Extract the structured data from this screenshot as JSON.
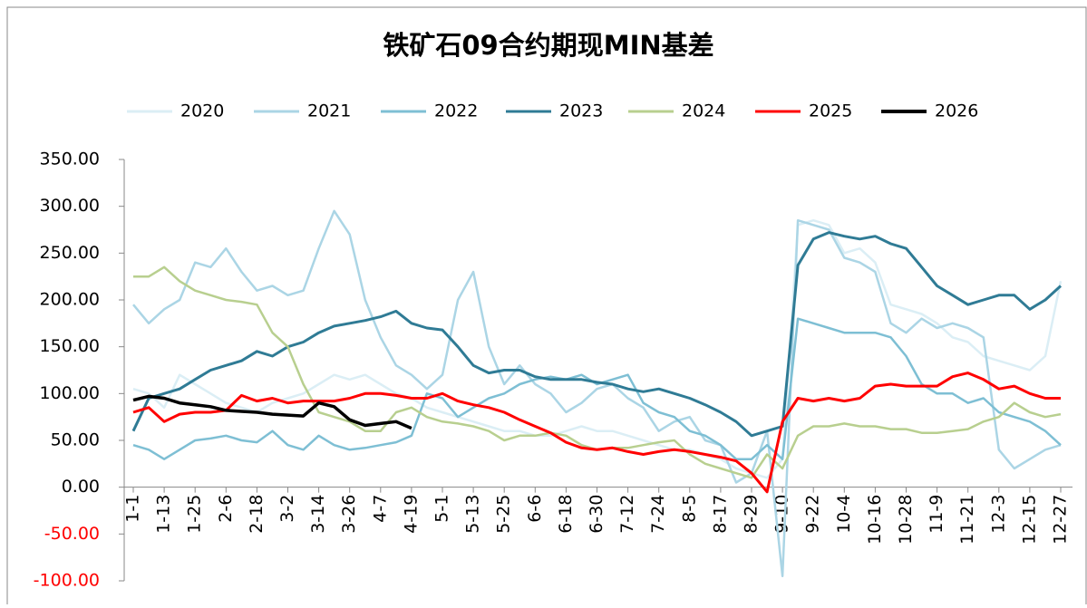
{
  "chart_data": {
    "type": "line",
    "title": "铁矿石09合约期现MIN基差",
    "categories": [
      "1-1",
      null,
      "1-13",
      null,
      "1-25",
      null,
      "2-6",
      null,
      "2-18",
      null,
      "3-2",
      null,
      "3-14",
      null,
      "3-26",
      null,
      "4-7",
      null,
      "4-19",
      null,
      "5-1",
      null,
      "5-13",
      null,
      "5-25",
      null,
      "6-6",
      null,
      "6-18",
      null,
      "6-30",
      null,
      "7-12",
      null,
      "7-24",
      null,
      "8-5",
      null,
      "8-17",
      null,
      "8-29",
      null,
      "9-10",
      null,
      "9-22",
      null,
      "10-4",
      null,
      "10-16",
      null,
      "10-28",
      null,
      "11-9",
      null,
      "11-21",
      null,
      "12-3",
      null,
      "12-15",
      null,
      "12-27"
    ],
    "series": [
      {
        "name": "2020",
        "color": "#dbeef5",
        "values": [
          105,
          100,
          85,
          120,
          110,
          100,
          90,
          85,
          80,
          90,
          95,
          100,
          110,
          120,
          115,
          120,
          110,
          100,
          95,
          85,
          80,
          75,
          70,
          65,
          60,
          60,
          55,
          55,
          60,
          65,
          60,
          60,
          55,
          50,
          45,
          40,
          40,
          35,
          30,
          20,
          15,
          10,
          30,
          280,
          285,
          280,
          250,
          255,
          240,
          195,
          190,
          185,
          175,
          160,
          155,
          140,
          135,
          130,
          125,
          140,
          220
        ]
      },
      {
        "name": "2021",
        "color": "#abd5e5",
        "values": [
          195,
          175,
          190,
          200,
          240,
          235,
          255,
          230,
          210,
          215,
          205,
          210,
          255,
          295,
          270,
          200,
          160,
          130,
          120,
          105,
          120,
          200,
          230,
          150,
          110,
          130,
          110,
          100,
          80,
          90,
          105,
          110,
          95,
          85,
          60,
          70,
          75,
          50,
          45,
          5,
          15,
          60,
          -95,
          285,
          280,
          275,
          245,
          240,
          230,
          175,
          165,
          180,
          170,
          175,
          170,
          160,
          40,
          20,
          30,
          40,
          45
        ]
      },
      {
        "name": "2022",
        "color": "#7ebfd4",
        "values": [
          45,
          40,
          30,
          40,
          50,
          52,
          55,
          50,
          48,
          60,
          45,
          40,
          55,
          45,
          40,
          42,
          45,
          48,
          55,
          100,
          95,
          75,
          85,
          95,
          100,
          110,
          115,
          118,
          115,
          120,
          110,
          115,
          120,
          90,
          80,
          75,
          60,
          55,
          45,
          30,
          30,
          45,
          30,
          180,
          175,
          170,
          165,
          165,
          165,
          160,
          140,
          110,
          100,
          100,
          90,
          95,
          80,
          75,
          70,
          60,
          45
        ]
      },
      {
        "name": "2023",
        "color": "#2f7b95",
        "values": [
          60,
          95,
          100,
          105,
          115,
          125,
          130,
          135,
          145,
          140,
          150,
          155,
          165,
          172,
          175,
          178,
          182,
          188,
          175,
          170,
          168,
          150,
          130,
          122,
          125,
          125,
          118,
          115,
          115,
          115,
          112,
          110,
          105,
          102,
          105,
          100,
          95,
          88,
          80,
          70,
          55,
          60,
          65,
          237,
          265,
          272,
          268,
          265,
          268,
          260,
          255,
          235,
          215,
          205,
          195,
          200,
          205,
          205,
          190,
          200,
          215
        ]
      },
      {
        "name": "2024",
        "color": "#b8cf8f",
        "values": [
          225,
          225,
          235,
          220,
          210,
          205,
          200,
          198,
          195,
          165,
          150,
          110,
          80,
          75,
          70,
          60,
          60,
          80,
          85,
          75,
          70,
          68,
          65,
          60,
          50,
          55,
          55,
          58,
          55,
          45,
          40,
          42,
          42,
          45,
          48,
          50,
          35,
          25,
          20,
          15,
          10,
          35,
          20,
          55,
          65,
          65,
          68,
          65,
          65,
          62,
          62,
          58,
          58,
          60,
          62,
          70,
          75,
          90,
          80,
          75,
          78
        ]
      },
      {
        "name": "2025",
        "color": "#ff0000",
        "values": [
          80,
          85,
          70,
          78,
          80,
          80,
          82,
          98,
          92,
          95,
          90,
          92,
          92,
          92,
          95,
          100,
          100,
          98,
          95,
          95,
          100,
          92,
          88,
          85,
          80,
          72,
          65,
          58,
          48,
          42,
          40,
          42,
          38,
          35,
          38,
          40,
          38,
          35,
          32,
          28,
          15,
          -5,
          70,
          95,
          92,
          95,
          92,
          95,
          108,
          110,
          108,
          108,
          108,
          118,
          122,
          115,
          105,
          108,
          100,
          95,
          95
        ]
      },
      {
        "name": "2026",
        "color": "#000000",
        "values": [
          93,
          97,
          95,
          90,
          88,
          86,
          82,
          81,
          80,
          78,
          77,
          76,
          90,
          86,
          72,
          66,
          68,
          70,
          63,
          null,
          null,
          null,
          null,
          null,
          null,
          null,
          null,
          null,
          null,
          null,
          null,
          null,
          null,
          null,
          null,
          null,
          null,
          null,
          null,
          null,
          null,
          null,
          null,
          null,
          null,
          null,
          null,
          null,
          null,
          null,
          null,
          null,
          null,
          null,
          null,
          null,
          null,
          null,
          null,
          null,
          null
        ]
      }
    ],
    "ylim": [
      -100,
      350
    ],
    "yticks": [
      {
        "value": -100,
        "label": "-100.00"
      },
      {
        "value": -50,
        "label": "-50.00"
      },
      {
        "value": 0,
        "label": "0.00"
      },
      {
        "value": 50,
        "label": "50.00"
      },
      {
        "value": 100,
        "label": "100.00"
      },
      {
        "value": 150,
        "label": "150.00"
      },
      {
        "value": 200,
        "label": "200.00"
      },
      {
        "value": 250,
        "label": "250.00"
      },
      {
        "value": 300,
        "label": "300.00"
      },
      {
        "value": 350,
        "label": "350.00"
      }
    ],
    "negative_label_color": "#ff0000",
    "legend": "top"
  }
}
